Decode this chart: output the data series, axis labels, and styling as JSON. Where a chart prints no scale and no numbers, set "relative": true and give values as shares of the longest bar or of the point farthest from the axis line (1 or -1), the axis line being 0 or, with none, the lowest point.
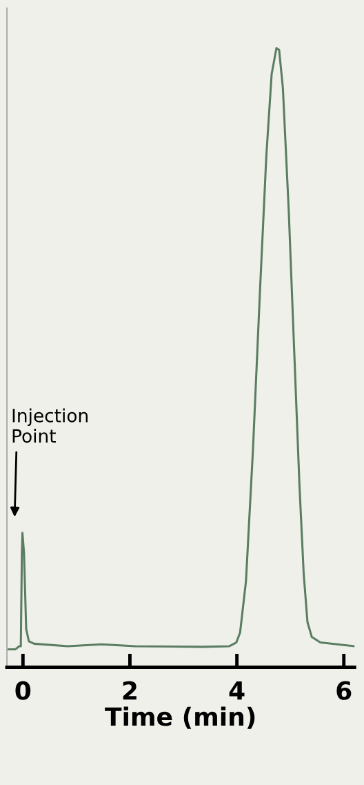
{
  "chart_data": {
    "type": "line",
    "xlabel": "Time (min)",
    "relative": true,
    "tick_labels": "x",
    "grid": false,
    "legend": false,
    "marker": "none",
    "line_style": "solid",
    "xlim": [
      -0.3,
      6.2
    ],
    "xticks": [
      0,
      2,
      4,
      6
    ],
    "annotations": [
      "Injection\nPoint"
    ],
    "series": [
      {
        "color": "#5b7d62",
        "x": [
          -0.27,
          -0.14,
          -0.07,
          -0.04,
          -0.02,
          -0.01,
          0.02,
          0.06,
          0.11,
          0.21,
          0.84,
          1.47,
          2.1,
          3.36,
          3.86,
          3.99,
          4.06,
          4.17,
          4.3,
          4.43,
          4.55,
          4.65,
          4.74,
          4.79,
          4.86,
          4.97,
          5.07,
          5.17,
          5.25,
          5.32,
          5.4,
          5.56,
          5.88,
          6.2
        ],
        "values": [
          0.029,
          0.029,
          0.034,
          0.034,
          0.184,
          0.217,
          0.184,
          0.062,
          0.042,
          0.038,
          0.034,
          0.037,
          0.034,
          0.033,
          0.034,
          0.04,
          0.056,
          0.139,
          0.35,
          0.604,
          0.825,
          0.958,
          1.0,
          0.997,
          0.936,
          0.737,
          0.515,
          0.294,
          0.15,
          0.073,
          0.049,
          0.04,
          0.037,
          0.034
        ]
      }
    ]
  }
}
